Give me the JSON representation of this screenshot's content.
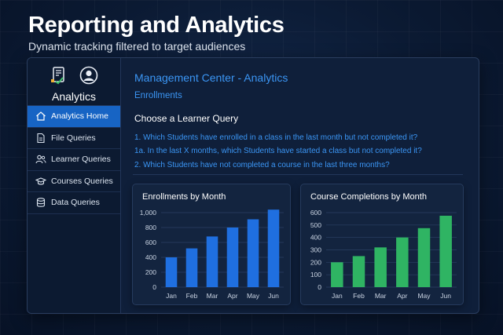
{
  "hero": {
    "title": "Reporting and Analytics",
    "subtitle": "Dynamic tracking filtered to target audiences"
  },
  "sidebar": {
    "header_icons": [
      "report-check-icon",
      "user-avatar-icon"
    ],
    "title": "Analytics",
    "items": [
      {
        "label": "Analytics Home",
        "icon": "home-icon",
        "active": true
      },
      {
        "label": "File Queries",
        "icon": "file-icon",
        "active": false
      },
      {
        "label": "Learner Queries",
        "icon": "users-icon",
        "active": false
      },
      {
        "label": "Courses Queries",
        "icon": "graduation-cap-icon",
        "active": false
      },
      {
        "label": "Data Queries",
        "icon": "database-icon",
        "active": false
      }
    ]
  },
  "main": {
    "title": "Management Center - Analytics",
    "subtitle": "Enrollments",
    "section_heading": "Choose a Learner Query",
    "queries": [
      "1.  Which Students have enrolled in a class in the last month but not completed it?",
      "1a.  In the last X months, which Students have started a class but not completed it?",
      "2.  Which Students have not completed a course in the last three months?"
    ]
  },
  "colors": {
    "accent": "#3b96f5",
    "active_nav": "#1764c4",
    "bar_blue": "#1f6fe0",
    "bar_green": "#2fb463"
  },
  "chart_data": [
    {
      "type": "bar",
      "title": "Enrollments by Month",
      "categories": [
        "Jan",
        "Feb",
        "Mar",
        "Apr",
        "May",
        "Jun"
      ],
      "values": [
        400,
        520,
        680,
        800,
        910,
        1040
      ],
      "ylim": [
        0,
        1000
      ],
      "yticks": [
        "0",
        "200",
        "400",
        "600",
        "800",
        "1,000"
      ],
      "grid": true,
      "color": "#1f6fe0"
    },
    {
      "type": "bar",
      "title": "Course Completions by Month",
      "categories": [
        "Jan",
        "Feb",
        "Mar",
        "Apr",
        "May",
        "Jun"
      ],
      "values": [
        200,
        250,
        320,
        400,
        475,
        575
      ],
      "ylim": [
        0,
        600
      ],
      "yticks": [
        "0",
        "100",
        "200",
        "300",
        "400",
        "500",
        "600"
      ],
      "grid": true,
      "color": "#2fb463"
    }
  ]
}
